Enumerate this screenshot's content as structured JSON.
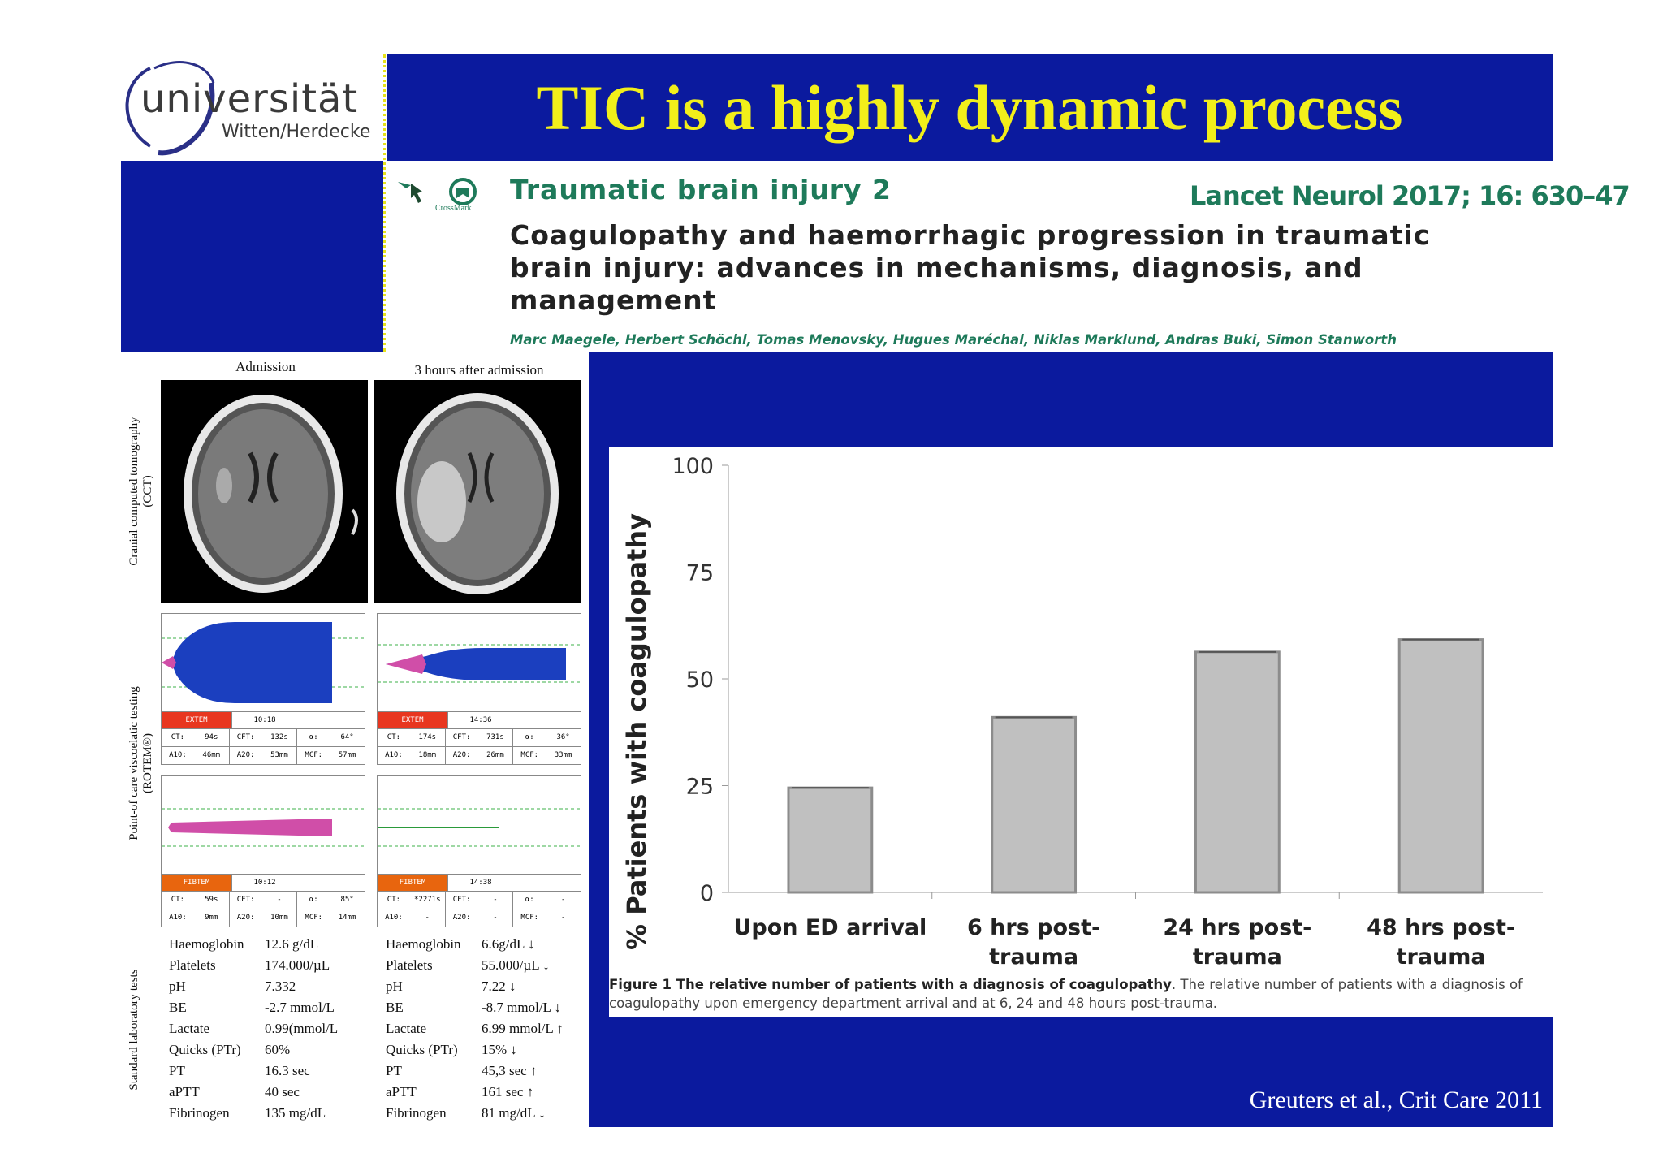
{
  "slide": {
    "title": "TIC is a highly dynamic process",
    "logo": {
      "line1": "universität",
      "line2": "Witten/Herdecke"
    },
    "citation": "Greuters et al., Crit Care 2011"
  },
  "article": {
    "series": "Traumatic brain injury 2",
    "journal": "Lancet Neurol 2017; 16: 630–47",
    "title_lines": [
      "Coagulopathy and haemorrhagic progression in traumatic",
      "brain injury: advances in mechanisms, diagnosis, and",
      "management"
    ],
    "authors": "Marc Maegele, Herbert Schöchl, Tomas Menovsky, Hugues Maréchal, Niklas Marklund, Andras Buki, Simon Stanworth",
    "crossmark": "CrossMark"
  },
  "clinical_figure": {
    "col_admission": "Admission",
    "col_3h": "3 hours after admission",
    "row_cct": [
      "Cranial computed tomography",
      "(CCT)"
    ],
    "row_rotem": [
      "Point-of care viscoelatic testing",
      "(ROTEM®)"
    ],
    "row_labs": "Standard laboratory tests",
    "rotem": {
      "extem_adm": {
        "name": "EXTEM",
        "time": "10:18",
        "r1": [
          "CT:",
          "94s",
          "CFT:",
          "132s",
          "α:",
          "64°"
        ],
        "r2": [
          "A10:",
          "46mm",
          "A20:",
          "53mm",
          "MCF:",
          "57mm"
        ]
      },
      "extem_3h": {
        "name": "EXTEM",
        "time": "14:36",
        "r1": [
          "CT:",
          "174s",
          "CFT:",
          "731s",
          "α:",
          "36°"
        ],
        "r2": [
          "A10:",
          "18mm",
          "A20:",
          "26mm",
          "MCF:",
          "33mm"
        ]
      },
      "fibtem_adm": {
        "name": "FIBTEM",
        "time": "10:12",
        "r1": [
          "CT:",
          "59s",
          "CFT:",
          "-",
          "α:",
          "85°"
        ],
        "r2": [
          "A10:",
          "9mm",
          "A20:",
          "10mm",
          "MCF:",
          "14mm"
        ]
      },
      "fibtem_3h": {
        "name": "FIBTEM",
        "time": "14:38",
        "r1": [
          "CT:",
          "*2271s",
          "CFT:",
          "-",
          "α:",
          "-"
        ],
        "r2": [
          "A10:",
          "-",
          "A20:",
          "-",
          "MCF:",
          "-"
        ]
      }
    },
    "labs_admission": [
      {
        "name": "Haemoglobin",
        "value": "12.6 g/dL"
      },
      {
        "name": "Platelets",
        "value": "174.000/µL"
      },
      {
        "name": "pH",
        "value": "7.332"
      },
      {
        "name": "BE",
        "value": "-2.7 mmol/L"
      },
      {
        "name": "Lactate",
        "value": "0.99(mmol/L"
      },
      {
        "name": "Quicks (PTr)",
        "value": "60%"
      },
      {
        "name": "PT",
        "value": "16.3 sec"
      },
      {
        "name": "aPTT",
        "value": "40 sec"
      },
      {
        "name": "Fibrinogen",
        "value": "135 mg/dL"
      }
    ],
    "labs_3h": [
      {
        "name": "Haemoglobin",
        "value": "6.6g/dL ↓"
      },
      {
        "name": "Platelets",
        "value": "55.000/µL ↓"
      },
      {
        "name": "pH",
        "value": "7.22 ↓"
      },
      {
        "name": "BE",
        "value": "-8.7 mmol/L ↓"
      },
      {
        "name": "Lactate",
        "value": "6.99 mmol/L ↑"
      },
      {
        "name": "Quicks (PTr)",
        "value": "15% ↓"
      },
      {
        "name": "PT",
        "value": "45,3 sec ↑"
      },
      {
        "name": "aPTT",
        "value": "161 sec ↑"
      },
      {
        "name": "Fibrinogen",
        "value": "81 mg/dL ↓"
      }
    ]
  },
  "figure_caption": {
    "bold": "Figure 1 The relative number of patients with a diagnosis of coagulopathy",
    "rest": ". The relative number of patients with a diagnosis of coagulopathy upon emergency department arrival and at 6, 24 and 48 hours post-trauma."
  },
  "chart_data": {
    "type": "bar",
    "categories": [
      [
        "Upon ED arrival"
      ],
      [
        "6 hrs post-",
        "trauma"
      ],
      [
        "24 hrs post-",
        "trauma"
      ],
      [
        "48 hrs post-",
        "trauma"
      ]
    ],
    "values": [
      24.5,
      41,
      56.3,
      59.2
    ],
    "ylabel": "% Patients with coagulopathy",
    "ylim": [
      0,
      100
    ],
    "yticks": [
      0,
      25,
      50,
      75,
      100
    ],
    "bar_color": "#c0c0c0",
    "bar_edge": "#8c8c8c",
    "grid": false
  },
  "colors": {
    "slide_blue": "#0b1a9e",
    "title_yellow": "#f2ef1a",
    "article_green": "#1e7a5a",
    "extem_red": "#e8361f",
    "fibtem_orange": "#e8650e",
    "rotem_blue": "#1b3fbf",
    "rotem_pink": "#d04ea8"
  }
}
